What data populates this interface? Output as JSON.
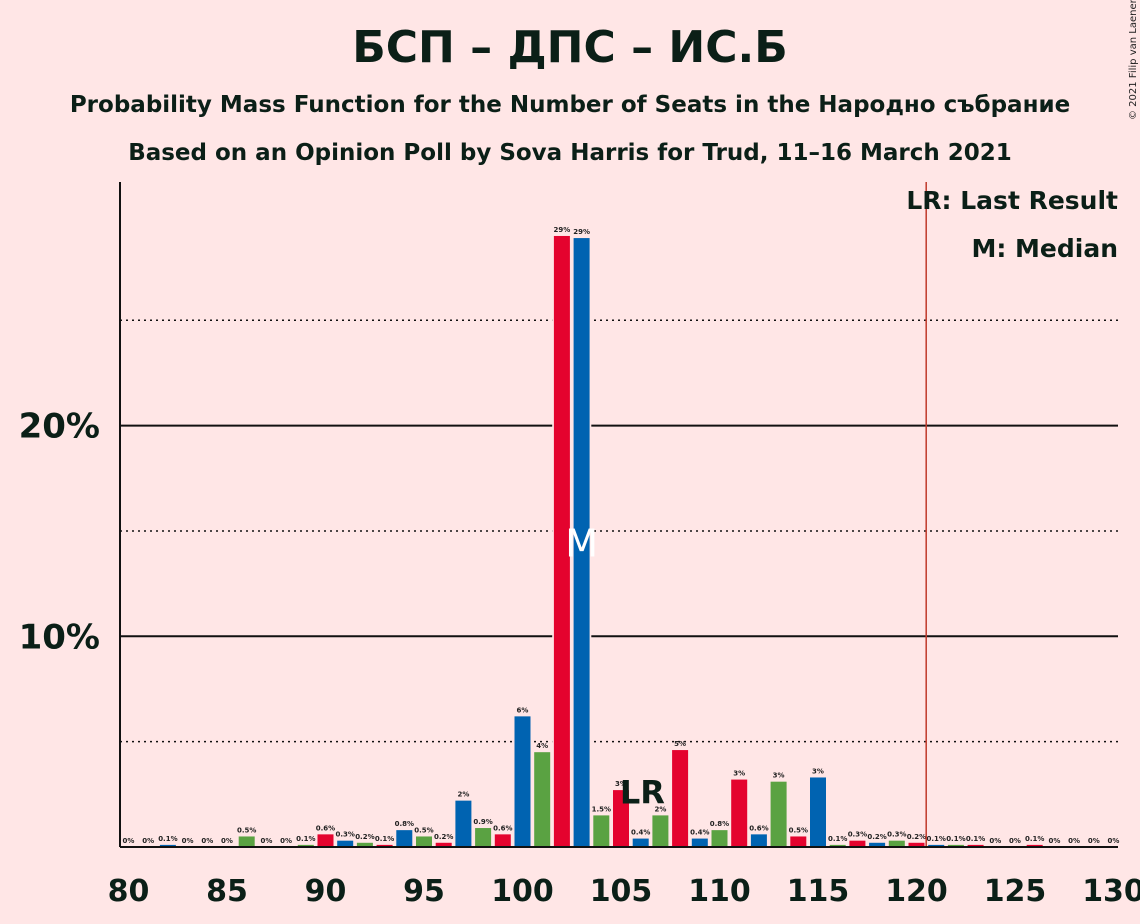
{
  "title": "БСП – ДПС – ИС.Б",
  "subtitle1": "Probability Mass Function for the Number of Seats in the Народно събрание",
  "subtitle2": "Based on an Opinion Poll by Sova Harris for Trud, 11–16 March 2021",
  "copyright": "© 2021 Filip van Laenen",
  "legend": {
    "last_result": "LR: Last Result",
    "median": "M: Median"
  },
  "markers": {
    "lr_text": "LR",
    "median_text": "M"
  },
  "colors": {
    "red": "#E4032E",
    "blue": "#0063B1",
    "green": "#5AA242",
    "threshold": "#C0392B",
    "background": "#FFE6E6"
  },
  "chart_data": {
    "type": "bar",
    "x": [
      80,
      81,
      82,
      83,
      84,
      85,
      86,
      87,
      88,
      89,
      90,
      91,
      92,
      93,
      94,
      95,
      96,
      97,
      98,
      99,
      100,
      101,
      102,
      103,
      104,
      105,
      106,
      107,
      108,
      109,
      110,
      111,
      112,
      113,
      114,
      115,
      116,
      117,
      118,
      119,
      120,
      121,
      122,
      123,
      124,
      125,
      126,
      127,
      128,
      129,
      130
    ],
    "values": [
      0,
      0,
      0.1,
      0,
      0,
      0,
      0.5,
      0,
      0,
      0.1,
      0.6,
      0.3,
      0.2,
      0.1,
      0.8,
      0.5,
      0.2,
      2.2,
      0.9,
      0.6,
      6.2,
      4.5,
      29,
      28.9,
      1.5,
      2.7,
      0.4,
      1.5,
      4.6,
      0.4,
      0.8,
      3.2,
      0.6,
      3.1,
      0.5,
      3.3,
      0.1,
      0.3,
      0.2,
      0.3,
      0.2,
      0.1,
      0.1,
      0.1,
      0,
      0,
      0.1,
      0,
      0,
      0,
      0
    ],
    "data_labels": [
      "0%",
      "0%",
      "0.1%",
      "0%",
      "0%",
      "0%",
      "0.5%",
      "0%",
      "0%",
      "0.1%",
      "0.6%",
      "0.3%",
      "0.2%",
      "0.1%",
      "0.8%",
      "0.5%",
      "0.2%",
      "2%",
      "0.9%",
      "0.6%",
      "6%",
      "4%",
      "29%",
      "29%",
      "1.5%",
      "3%",
      "0.4%",
      "2%",
      "5%",
      "0.4%",
      "0.8%",
      "3%",
      "0.6%",
      "3%",
      "0.5%",
      "3%",
      "0.1%",
      "0.3%",
      "0.2%",
      "0.3%",
      "0.2%",
      "0.1%",
      "0.1%",
      "0.1%",
      "0%",
      "0%",
      "0.1%",
      "0%",
      "0%",
      "0%",
      "0%"
    ],
    "x_ticks": [
      80,
      85,
      90,
      95,
      100,
      105,
      110,
      115,
      120,
      125,
      130
    ],
    "y_ticks": [
      10,
      20
    ],
    "y_tick_labels": [
      "10%",
      "20%"
    ],
    "y_dotted_lines": [
      5,
      15,
      25
    ],
    "ylim": [
      0,
      31
    ],
    "xlim": [
      80,
      130
    ],
    "majority_threshold": 121,
    "last_result": 107,
    "median": 103,
    "grid": true,
    "legend_position": "top-right"
  }
}
